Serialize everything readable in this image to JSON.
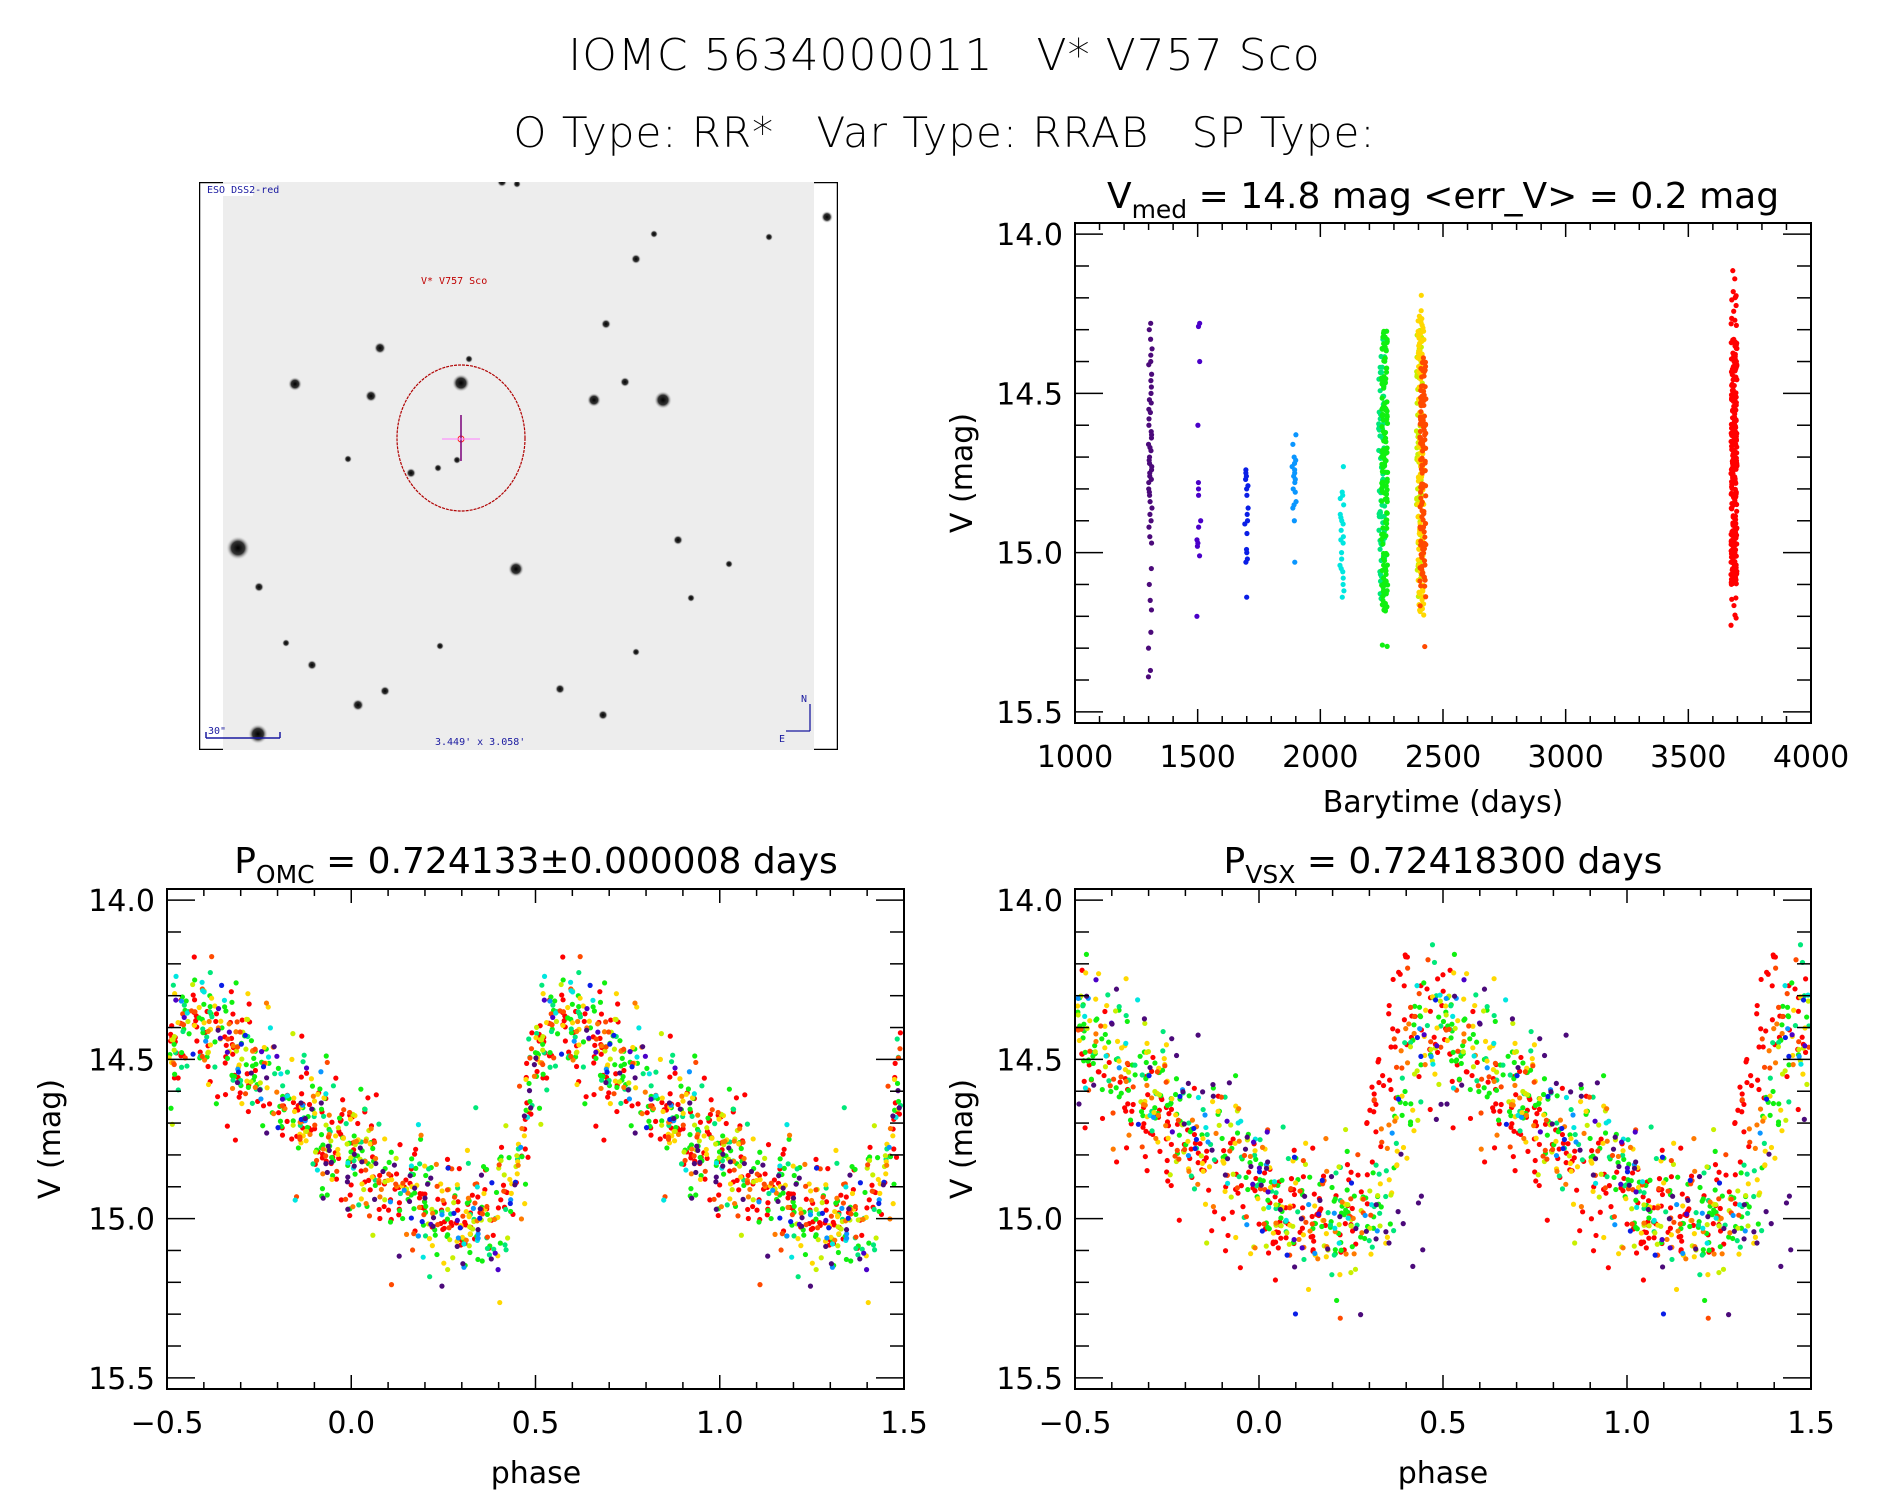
{
  "header": {
    "line1": [
      "IOMC 5634000011",
      "V* V757 Sco"
    ],
    "line2": [
      "O Type: RR*",
      "Var Type: RRAB",
      "SP Type:"
    ]
  },
  "sky_image": {
    "survey_label": "ESO DSS2-red",
    "target_label": "V* V757 Sco",
    "scale_bar_label": "30\"",
    "fov_label": "3.449' x 3.058'",
    "north_label": "N",
    "east_label": "E",
    "label_color": "#1a1aa0",
    "target_color": "#c00000",
    "circle_color": "#b00000"
  },
  "chart_data": [
    {
      "id": "lightcurve",
      "type": "scatter",
      "title_main": "V",
      "title_sub": "med",
      "title_rest": " = 14.8 mag <err_V> = 0.2 mag",
      "xlabel": "Barytime (days)",
      "ylabel": "V (mag)",
      "xlim": [
        1000,
        4000
      ],
      "ylim": [
        15.535,
        13.965
      ],
      "y_inverted": true,
      "xticks": [
        1000,
        1500,
        2000,
        2500,
        3000,
        3500,
        4000
      ],
      "xtick_labels": [
        "1000",
        "1500",
        "2000",
        "2500",
        "3000",
        "3500",
        "4000"
      ],
      "x_minor": 100,
      "yticks": [
        14.0,
        14.5,
        15.0,
        15.5
      ],
      "ytick_labels": [
        "14.0",
        "14.5",
        "15.0",
        "15.5"
      ],
      "y_minor": 0.1,
      "grid": false,
      "clusters": [
        {
          "t": 1306,
          "color": "#4b0a7a",
          "mags": [
            14.28,
            14.3,
            14.33,
            14.36,
            14.38,
            14.4,
            14.41,
            14.44,
            14.46,
            14.48,
            14.5,
            14.52,
            14.53,
            14.55,
            14.56,
            14.58,
            14.6,
            14.62,
            14.63,
            14.64,
            14.66,
            14.67,
            14.68,
            14.7,
            14.71,
            14.72,
            14.73,
            14.74,
            14.75,
            14.76,
            14.77,
            14.78,
            14.8,
            14.81,
            14.82,
            14.84,
            14.86,
            14.88,
            14.9,
            14.92,
            14.95,
            14.97,
            15.05,
            15.1,
            15.15,
            15.18,
            15.25,
            15.3,
            15.37,
            15.39
          ]
        },
        {
          "t": 1505,
          "color": "#4a00c8",
          "mags": [
            14.28,
            14.29,
            14.4,
            14.6,
            14.78,
            14.8,
            14.82,
            14.9,
            14.92,
            14.96,
            14.97,
            14.98,
            15.01,
            15.2
          ]
        },
        {
          "t": 1700,
          "color": "#0a1ee6",
          "mags": [
            14.74,
            14.75,
            14.76,
            14.77,
            14.79,
            14.8,
            14.82,
            14.86,
            14.88,
            14.9,
            14.91,
            14.94,
            14.99,
            15.0,
            15.02,
            15.03,
            15.14
          ]
        },
        {
          "t": 1893,
          "color": "#0a96ff",
          "mags": [
            14.63,
            14.66,
            14.7,
            14.71,
            14.72,
            14.73,
            14.74,
            14.75,
            14.76,
            14.77,
            14.78,
            14.8,
            14.81,
            14.84,
            14.85,
            14.86,
            14.9,
            15.03
          ]
        },
        {
          "t": 2088,
          "color": "#00e6e0",
          "mags": [
            14.73,
            14.81,
            14.82,
            14.83,
            14.85,
            14.88,
            14.89,
            14.9,
            14.91,
            14.93,
            14.95,
            14.96,
            14.97,
            15.0,
            15.02,
            15.04,
            15.05,
            15.06,
            15.08,
            15.1,
            15.12,
            15.14
          ]
        }
      ],
      "dense_clusters": [
        {
          "t": 2250,
          "color": "#00e87a",
          "mag_min": 14.28,
          "mag_max": 15.22,
          "core_min": 14.35,
          "core_max": 15.15,
          "n": 90
        },
        {
          "t": 2262,
          "color": "#10f010",
          "mag_min": 14.28,
          "mag_max": 15.33,
          "core_min": 14.3,
          "core_max": 15.2,
          "n": 150
        },
        {
          "t": 2404,
          "color": "#c8f000",
          "mag_min": 14.2,
          "mag_max": 15.25,
          "core_min": 14.3,
          "core_max": 15.1,
          "n": 80
        },
        {
          "t": 2410,
          "color": "#ffd800",
          "mag_min": 14.1,
          "mag_max": 15.28,
          "core_min": 14.25,
          "core_max": 15.2,
          "n": 110
        },
        {
          "t": 2418,
          "color": "#ff4a00",
          "mag_min": 14.35,
          "mag_max": 15.3,
          "core_min": 14.4,
          "core_max": 15.1,
          "n": 120
        },
        {
          "t": 3686,
          "color": "#ff0000",
          "mag_min": 14.11,
          "mag_max": 15.24,
          "core_min": 14.33,
          "core_max": 15.1,
          "n": 300
        }
      ]
    },
    {
      "id": "phase_omc",
      "type": "scatter",
      "title_main": "P",
      "title_sub": "OMC",
      "title_rest": " = 0.724133±0.000008 days",
      "period_days": 0.724133,
      "period_err": 8e-06,
      "xlabel": "phase",
      "ylabel": "V (mag)",
      "xlim": [
        -0.5,
        1.5
      ],
      "ylim": [
        15.535,
        13.965
      ],
      "y_inverted": true,
      "xticks": [
        -0.5,
        0.0,
        0.5,
        1.0,
        1.5
      ],
      "xtick_labels": [
        "−0.5",
        "0.0",
        "0.5",
        "1.0",
        "1.5"
      ],
      "x_minor": 0.1,
      "yticks": [
        14.0,
        14.5,
        15.0,
        15.5
      ],
      "ytick_labels": [
        "14.0",
        "14.5",
        "15.0",
        "15.5"
      ],
      "y_minor": 0.1,
      "grid": false,
      "light_curve_template": {
        "phase": [
          0.0,
          0.05,
          0.1,
          0.15,
          0.2,
          0.25,
          0.3,
          0.35,
          0.4,
          0.45,
          0.5,
          0.55,
          0.6,
          0.65,
          0.7,
          0.75,
          0.8,
          0.85,
          0.9,
          0.95,
          1.0
        ],
        "mag": [
          14.78,
          14.82,
          14.86,
          14.9,
          14.94,
          14.97,
          14.99,
          14.99,
          14.97,
          14.85,
          14.5,
          14.35,
          14.35,
          14.42,
          14.48,
          14.54,
          14.6,
          14.65,
          14.69,
          14.73,
          14.78
        ]
      },
      "scatter_sigma": 0.09,
      "color_groups": [
        {
          "color": "#ff0000",
          "n": 220,
          "phase_shift": 0.0
        },
        {
          "color": "#10f010",
          "n": 160,
          "phase_shift": 0.0
        },
        {
          "color": "#00e87a",
          "n": 70,
          "phase_shift": 0.0
        },
        {
          "color": "#ffd800",
          "n": 90,
          "phase_shift": 0.0
        },
        {
          "color": "#c8f000",
          "n": 60,
          "phase_shift": 0.0
        },
        {
          "color": "#ff7a00",
          "n": 50,
          "phase_shift": 0.0
        },
        {
          "color": "#ff4a00",
          "n": 60,
          "phase_shift": 0.0
        },
        {
          "color": "#00e6e0",
          "n": 22,
          "phase_shift": 0.0
        },
        {
          "color": "#0a96ff",
          "n": 18,
          "phase_shift": 0.0
        },
        {
          "color": "#0a1ee6",
          "n": 17,
          "phase_shift": 0.0
        },
        {
          "color": "#4a00c8",
          "n": 14,
          "phase_shift": 0.0
        },
        {
          "color": "#4b0a7a",
          "n": 50,
          "phase_shift": 0.0
        }
      ]
    },
    {
      "id": "phase_vsx",
      "type": "scatter",
      "title_main": "P",
      "title_sub": "VSX",
      "title_rest": " = 0.72418300 days",
      "period_days": 0.724183,
      "xlabel": "phase",
      "ylabel": "V (mag)",
      "xlim": [
        -0.5,
        1.5
      ],
      "ylim": [
        15.535,
        13.965
      ],
      "y_inverted": true,
      "xticks": [
        -0.5,
        0.0,
        0.5,
        1.0,
        1.5
      ],
      "xtick_labels": [
        "−0.5",
        "0.0",
        "0.5",
        "1.0",
        "1.5"
      ],
      "x_minor": 0.1,
      "yticks": [
        14.0,
        14.5,
        15.0,
        15.5
      ],
      "ytick_labels": [
        "14.0",
        "14.5",
        "15.0",
        "15.5"
      ],
      "y_minor": 0.1,
      "grid": false,
      "light_curve_template": {
        "phase": [
          0.0,
          0.05,
          0.1,
          0.15,
          0.2,
          0.25,
          0.3,
          0.35,
          0.4,
          0.45,
          0.5,
          0.55,
          0.6,
          0.65,
          0.7,
          0.75,
          0.8,
          0.85,
          0.9,
          0.95,
          1.0
        ],
        "mag": [
          14.88,
          14.92,
          14.96,
          14.99,
          15.0,
          15.0,
          14.98,
          14.9,
          14.6,
          14.4,
          14.35,
          14.4,
          14.46,
          14.52,
          14.58,
          14.64,
          14.69,
          14.74,
          14.78,
          14.83,
          14.88
        ]
      },
      "scatter_sigma": 0.1,
      "color_groups": [
        {
          "color": "#ff0000",
          "n": 220,
          "phase_shift": -0.08
        },
        {
          "color": "#10f010",
          "n": 160,
          "phase_shift": 0.0
        },
        {
          "color": "#00e87a",
          "n": 70,
          "phase_shift": 0.0
        },
        {
          "color": "#ffd800",
          "n": 90,
          "phase_shift": 0.02
        },
        {
          "color": "#c8f000",
          "n": 60,
          "phase_shift": 0.01
        },
        {
          "color": "#ff7a00",
          "n": 50,
          "phase_shift": -0.03
        },
        {
          "color": "#ff4a00",
          "n": 60,
          "phase_shift": -0.05
        },
        {
          "color": "#00e6e0",
          "n": 22,
          "phase_shift": 0.0
        },
        {
          "color": "#0a96ff",
          "n": 18,
          "phase_shift": 0.0
        },
        {
          "color": "#0a1ee6",
          "n": 17,
          "phase_shift": 0.0
        },
        {
          "color": "#4a00c8",
          "n": 14,
          "phase_shift": 0.05
        },
        {
          "color": "#4b0a7a",
          "n": 50,
          "phase_shift": 0.1
        }
      ]
    }
  ]
}
